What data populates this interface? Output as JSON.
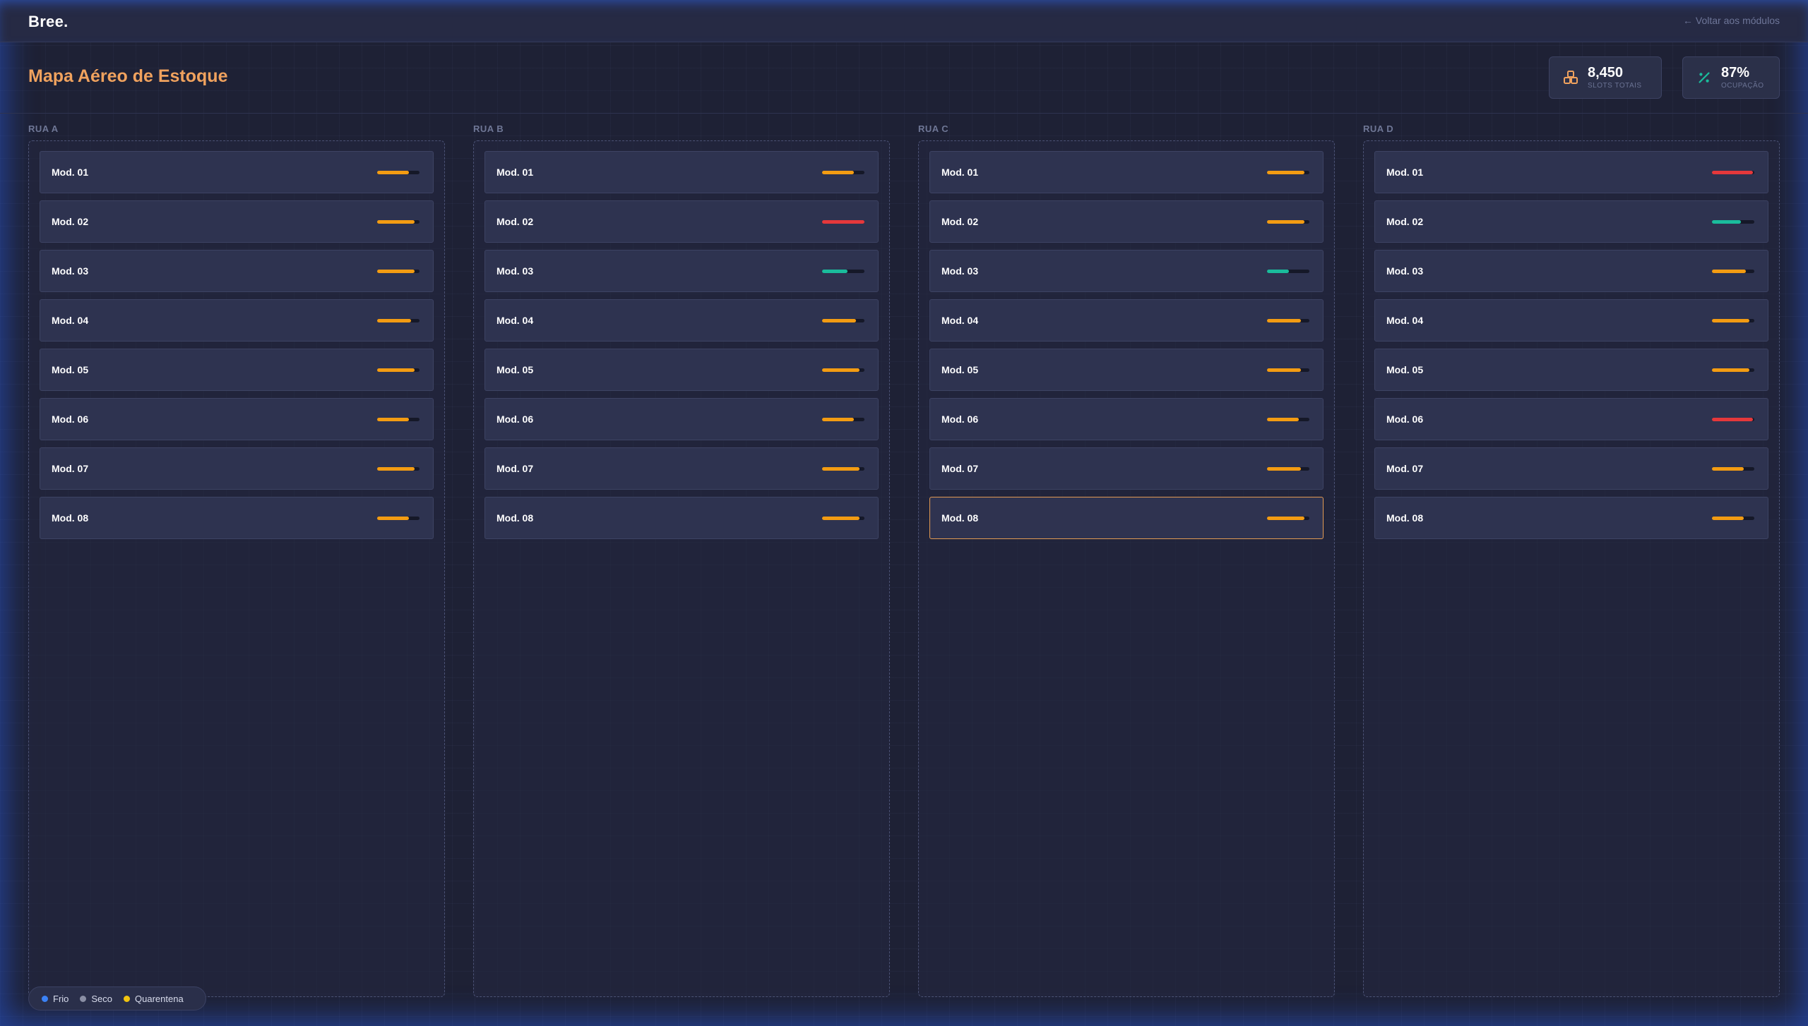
{
  "app": {
    "brand": "Bree.",
    "back_label": "Voltar aos módulos"
  },
  "page": {
    "title": "Mapa Aéreo de Estoque"
  },
  "stats": {
    "slots": {
      "value": "8,450",
      "label": "SLOTS TOTAIS",
      "icon": "boxes-icon"
    },
    "occupancy": {
      "value": "87%",
      "label": "OCUPAÇÃO",
      "icon": "percent-icon"
    }
  },
  "colors": {
    "ok": "#f39c12",
    "critical": "#e5383b",
    "low": "#1abc9c",
    "accent": "#f0a25e",
    "frio": "#3b82f6",
    "seco": "#8a8fa5",
    "quarentena": "#f1c40f"
  },
  "streets": [
    {
      "label": "RUA A",
      "modules": [
        {
          "name": "Mod. 01",
          "fill": 0.75,
          "status": "ok"
        },
        {
          "name": "Mod. 02",
          "fill": 0.88,
          "status": "ok"
        },
        {
          "name": "Mod. 03",
          "fill": 0.88,
          "status": "ok"
        },
        {
          "name": "Mod. 04",
          "fill": 0.8,
          "status": "ok"
        },
        {
          "name": "Mod. 05",
          "fill": 0.88,
          "status": "ok"
        },
        {
          "name": "Mod. 06",
          "fill": 0.75,
          "status": "ok"
        },
        {
          "name": "Mod. 07",
          "fill": 0.88,
          "status": "ok"
        },
        {
          "name": "Mod. 08",
          "fill": 0.75,
          "status": "ok"
        }
      ]
    },
    {
      "label": "RUA B",
      "modules": [
        {
          "name": "Mod. 01",
          "fill": 0.75,
          "status": "ok"
        },
        {
          "name": "Mod. 02",
          "fill": 1.0,
          "status": "critical"
        },
        {
          "name": "Mod. 03",
          "fill": 0.6,
          "status": "low"
        },
        {
          "name": "Mod. 04",
          "fill": 0.8,
          "status": "ok"
        },
        {
          "name": "Mod. 05",
          "fill": 0.88,
          "status": "ok"
        },
        {
          "name": "Mod. 06",
          "fill": 0.75,
          "status": "ok"
        },
        {
          "name": "Mod. 07",
          "fill": 0.88,
          "status": "ok"
        },
        {
          "name": "Mod. 08",
          "fill": 0.88,
          "status": "ok"
        }
      ]
    },
    {
      "label": "RUA C",
      "modules": [
        {
          "name": "Mod. 01",
          "fill": 0.88,
          "status": "ok"
        },
        {
          "name": "Mod. 02",
          "fill": 0.88,
          "status": "ok"
        },
        {
          "name": "Mod. 03",
          "fill": 0.52,
          "status": "low"
        },
        {
          "name": "Mod. 04",
          "fill": 0.8,
          "status": "ok"
        },
        {
          "name": "Mod. 05",
          "fill": 0.8,
          "status": "ok"
        },
        {
          "name": "Mod. 06",
          "fill": 0.75,
          "status": "ok"
        },
        {
          "name": "Mod. 07",
          "fill": 0.8,
          "status": "ok"
        },
        {
          "name": "Mod. 08",
          "fill": 0.88,
          "status": "ok",
          "selected": true
        }
      ]
    },
    {
      "label": "RUA D",
      "modules": [
        {
          "name": "Mod. 01",
          "fill": 0.97,
          "status": "critical"
        },
        {
          "name": "Mod. 02",
          "fill": 0.68,
          "status": "low"
        },
        {
          "name": "Mod. 03",
          "fill": 0.8,
          "status": "ok"
        },
        {
          "name": "Mod. 04",
          "fill": 0.88,
          "status": "ok"
        },
        {
          "name": "Mod. 05",
          "fill": 0.88,
          "status": "ok"
        },
        {
          "name": "Mod. 06",
          "fill": 0.97,
          "status": "critical"
        },
        {
          "name": "Mod. 07",
          "fill": 0.75,
          "status": "ok"
        },
        {
          "name": "Mod. 08",
          "fill": 0.75,
          "status": "ok"
        }
      ]
    }
  ],
  "legend": [
    {
      "label": "Frio",
      "color_key": "frio"
    },
    {
      "label": "Seco",
      "color_key": "seco"
    },
    {
      "label": "Quarentena",
      "color_key": "quarentena"
    }
  ]
}
